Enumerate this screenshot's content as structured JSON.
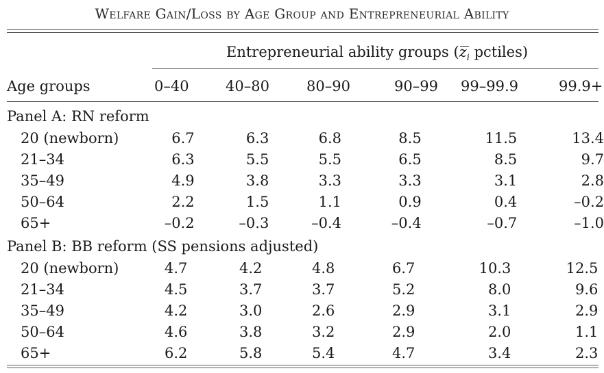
{
  "title": "Welfare Gain/Loss by Age Group and Entrepreneurial Ability",
  "column_group": {
    "prefix": "Entrepreneurial ability groups (",
    "z": "z",
    "z_sub": "i",
    "suffix": " pctiles)"
  },
  "row_header": "Age groups",
  "columns": [
    "0–40",
    "40–80",
    "80–90",
    "90–99",
    "99–99.9",
    "99.9+"
  ],
  "panels": [
    {
      "label": "Panel A: RN reform",
      "rows": [
        {
          "age": "20 (newborn)",
          "values": [
            "6.7",
            "6.3",
            "6.8",
            "8.5",
            "11.5",
            "13.4"
          ]
        },
        {
          "age": "21–34",
          "values": [
            "6.3",
            "5.5",
            "5.5",
            "6.5",
            "8.5",
            "9.7"
          ]
        },
        {
          "age": "35–49",
          "values": [
            "4.9",
            "3.8",
            "3.3",
            "3.3",
            "3.1",
            "2.8"
          ]
        },
        {
          "age": "50–64",
          "values": [
            "2.2",
            "1.5",
            "1.1",
            "0.9",
            "0.4",
            "–0.2"
          ]
        },
        {
          "age": "65+",
          "values": [
            "–0.2",
            "–0.3",
            "–0.4",
            "–0.4",
            "–0.7",
            "–1.0"
          ]
        }
      ]
    },
    {
      "label": "Panel B: BB reform (SS pensions adjusted)",
      "rows": [
        {
          "age": "20 (newborn)",
          "values": [
            "4.7",
            "4.2",
            "4.8",
            "6.7",
            "10.3",
            "12.5"
          ]
        },
        {
          "age": "21–34",
          "values": [
            "4.5",
            "3.7",
            "3.7",
            "5.2",
            "8.0",
            "9.6"
          ]
        },
        {
          "age": "35–49",
          "values": [
            "4.2",
            "3.0",
            "2.6",
            "2.9",
            "3.1",
            "2.9"
          ]
        },
        {
          "age": "50–64",
          "values": [
            "4.6",
            "3.8",
            "3.2",
            "2.9",
            "2.0",
            "1.1"
          ]
        },
        {
          "age": "65+",
          "values": [
            "6.2",
            "5.8",
            "5.4",
            "4.7",
            "3.4",
            "2.3"
          ]
        }
      ]
    }
  ]
}
